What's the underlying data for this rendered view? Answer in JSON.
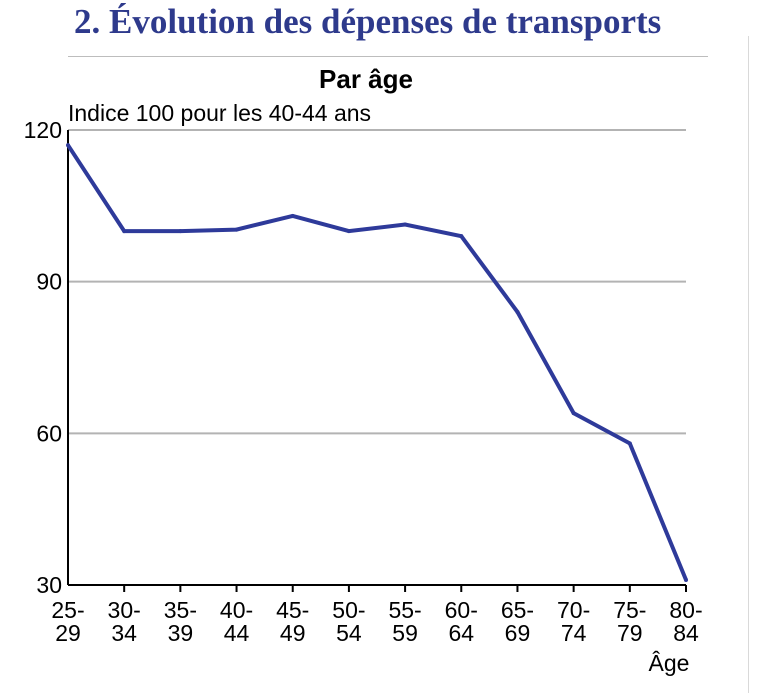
{
  "header": {
    "title": "2. Évolution des dépenses de transports"
  },
  "colors": {
    "title": "#2e3a8c",
    "line": "#2e3a9a",
    "grid": "#b3b3b3",
    "axis": "#000000"
  },
  "chart_data": {
    "type": "line",
    "title": "Par âge",
    "subtitle": "Indice 100 pour les 40-44 ans",
    "xlabel": "Âge",
    "ylabel": "",
    "ylim": [
      30,
      120
    ],
    "yticks": [
      30,
      60,
      90,
      120
    ],
    "grid": true,
    "categories": [
      [
        "25-",
        "29"
      ],
      [
        "30-",
        "34"
      ],
      [
        "35-",
        "39"
      ],
      [
        "40-",
        "44"
      ],
      [
        "45-",
        "49"
      ],
      [
        "50-",
        "54"
      ],
      [
        "55-",
        "59"
      ],
      [
        "60-",
        "64"
      ],
      [
        "65-",
        "69"
      ],
      [
        "70-",
        "74"
      ],
      [
        "75-",
        "79"
      ],
      [
        "80-",
        "84"
      ]
    ],
    "series": [
      {
        "name": "Dépenses de transports",
        "values": [
          117,
          100,
          100,
          100.3,
          103,
          100,
          101.3,
          99,
          84,
          64,
          58,
          31
        ]
      }
    ]
  }
}
